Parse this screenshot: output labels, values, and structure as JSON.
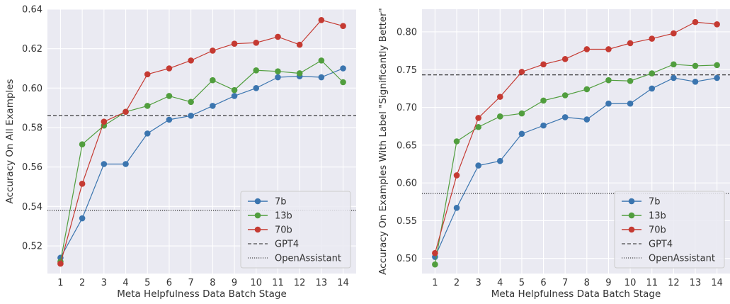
{
  "chart_data": [
    {
      "type": "line",
      "xlabel": "Meta Helpfulness Data Batch Stage",
      "ylabel": "Accuracy On All Examples",
      "x": [
        1,
        2,
        3,
        4,
        5,
        6,
        7,
        8,
        9,
        10,
        11,
        12,
        13,
        14
      ],
      "ylim": [
        0.506,
        0.64
      ],
      "yticks": [
        0.52,
        0.54,
        0.56,
        0.58,
        0.6,
        0.62,
        0.64
      ],
      "ytick_labels": [
        "0.52",
        "0.54",
        "0.56",
        "0.58",
        "0.60",
        "0.62",
        "0.64"
      ],
      "series": [
        {
          "name": "7b",
          "color": "#3b75af",
          "values": [
            0.514,
            0.534,
            0.5615,
            0.5615,
            0.577,
            0.584,
            0.586,
            0.591,
            0.596,
            0.6,
            0.6055,
            0.606,
            0.6055,
            0.61
          ]
        },
        {
          "name": "13b",
          "color": "#519e3e",
          "values": [
            0.512,
            0.5715,
            0.581,
            0.588,
            0.591,
            0.596,
            0.593,
            0.604,
            0.599,
            0.609,
            0.6085,
            0.6075,
            0.614,
            0.603
          ]
        },
        {
          "name": "70b",
          "color": "#c53a32",
          "values": [
            0.511,
            0.5515,
            0.583,
            0.588,
            0.607,
            0.61,
            0.614,
            0.619,
            0.6225,
            0.623,
            0.626,
            0.622,
            0.6345,
            0.6315
          ]
        }
      ],
      "reference_lines": [
        {
          "name": "GPT4",
          "style": "dashed",
          "value": 0.586
        },
        {
          "name": "OpenAssistant",
          "style": "dotted",
          "value": 0.538
        }
      ],
      "grid": true,
      "legend_position": "lower-right"
    },
    {
      "type": "line",
      "xlabel": "Meta Helpfulness Data Batch Stage",
      "ylabel": "Accuracy On Examples With Label \"Significantly Better\"",
      "x": [
        1,
        2,
        3,
        4,
        5,
        6,
        7,
        8,
        9,
        10,
        11,
        12,
        13,
        14
      ],
      "ylim": [
        0.48,
        0.83
      ],
      "yticks": [
        0.5,
        0.55,
        0.6,
        0.65,
        0.7,
        0.75,
        0.8
      ],
      "ytick_labels": [
        "0.50",
        "0.55",
        "0.60",
        "0.65",
        "0.70",
        "0.75",
        "0.80"
      ],
      "series": [
        {
          "name": "7b",
          "color": "#3b75af",
          "values": [
            0.502,
            0.567,
            0.623,
            0.629,
            0.665,
            0.676,
            0.687,
            0.684,
            0.705,
            0.705,
            0.725,
            0.739,
            0.734,
            0.739
          ]
        },
        {
          "name": "13b",
          "color": "#519e3e",
          "values": [
            0.492,
            0.655,
            0.674,
            0.688,
            0.692,
            0.709,
            0.716,
            0.724,
            0.736,
            0.735,
            0.745,
            0.757,
            0.755,
            0.756
          ]
        },
        {
          "name": "70b",
          "color": "#c53a32",
          "values": [
            0.507,
            0.61,
            0.686,
            0.714,
            0.747,
            0.757,
            0.764,
            0.777,
            0.777,
            0.785,
            0.791,
            0.798,
            0.813,
            0.81
          ]
        }
      ],
      "reference_lines": [
        {
          "name": "GPT4",
          "style": "dashed",
          "value": 0.743
        },
        {
          "name": "OpenAssistant",
          "style": "dotted",
          "value": 0.586
        }
      ],
      "grid": true,
      "legend_position": "lower-right"
    }
  ]
}
